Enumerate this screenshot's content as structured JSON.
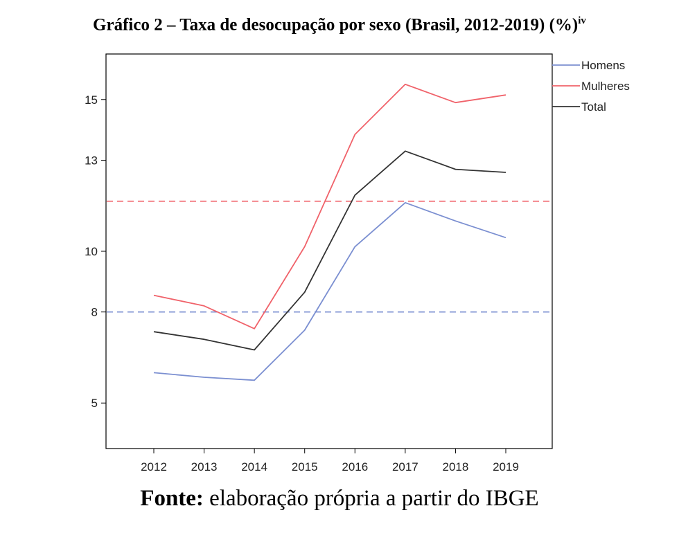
{
  "header": {
    "title": "Gráfico 2 – Taxa de desocupação por sexo (Brasil, 2012-2019) (%)",
    "title_sup": "iv"
  },
  "footer": {
    "source_label": "Fonte:",
    "source_text": " elaboração própria a partir do IBGE"
  },
  "chart_data": {
    "type": "line",
    "title": "Gráfico 2 – Taxa de desocupação por sexo (Brasil, 2012-2019) (%)",
    "xlabel": "",
    "ylabel": "",
    "x": [
      "2012",
      "2013",
      "2014",
      "2015",
      "2016",
      "2017",
      "2018",
      "2019"
    ],
    "ylim": [
      3.5,
      16.5
    ],
    "yticks": [
      5,
      8,
      10,
      13,
      15
    ],
    "grid": false,
    "legend_position": "top-right",
    "series": [
      {
        "name": "Homens",
        "color": "#7b8fd1",
        "values": [
          6.0,
          5.85,
          5.75,
          7.4,
          10.15,
          11.6,
          11.0,
          10.45
        ]
      },
      {
        "name": "Mulheres",
        "color": "#f0626a",
        "values": [
          8.55,
          8.2,
          7.45,
          10.15,
          13.85,
          15.5,
          14.9,
          15.15
        ]
      },
      {
        "name": "Total",
        "color": "#333333",
        "values": [
          7.35,
          7.1,
          6.75,
          8.65,
          11.85,
          13.3,
          12.7,
          12.6
        ]
      }
    ],
    "reference_lines": [
      {
        "value": 11.65,
        "color": "#f0626a",
        "style": "dashed"
      },
      {
        "value": 8.0,
        "color": "#7b8fd1",
        "style": "dashed"
      }
    ]
  }
}
